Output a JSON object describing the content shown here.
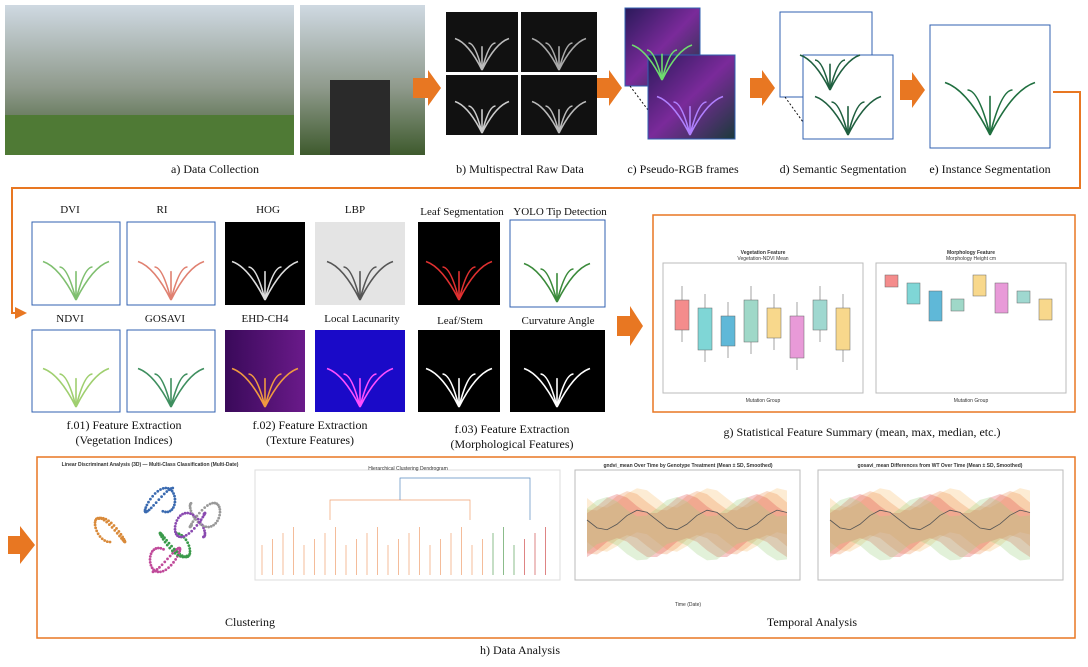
{
  "row1": {
    "a": "a) Data Collection",
    "b": "b) Multispectral Raw Data",
    "c": "c) Pseudo-RGB frames",
    "d": "d) Semantic Segmentation",
    "e": "e) Instance Segmentation"
  },
  "f01": {
    "panels": [
      "DVI",
      "RI",
      "NDVI",
      "GOSAVI"
    ],
    "caption": [
      "f.01) Feature Extraction",
      "(Vegetation Indices)"
    ]
  },
  "f02": {
    "panels": [
      "HOG",
      "LBP",
      "EHD-CH4",
      "Local Lacunarity"
    ],
    "caption": [
      "f.02) Feature Extraction",
      "(Texture Features)"
    ]
  },
  "f03": {
    "panels": [
      "Leaf Segmentation",
      "YOLO Tip Detection",
      "Leaf/Stem",
      "Curvature Angle"
    ],
    "caption": [
      "f.03) Feature Extraction",
      "(Morphological Features)"
    ]
  },
  "g": {
    "caption": "g) Statistical Feature Summary (mean, max, median, etc.)",
    "plots": [
      {
        "title": "Vegetation Feature",
        "subtitle": "Vegetation-NDVI Mean",
        "xlabel": "Mutation Group"
      },
      {
        "title": "Morphology Feature",
        "subtitle": "Morphology Height cm",
        "xlabel": "Mutation Group"
      }
    ]
  },
  "h": {
    "caption": "h) Data Analysis",
    "clustering": "Clustering",
    "temporal": "Temporal Analysis",
    "plots": [
      "Linear Discriminant Analysis (3D) — Multi-Class Classification (Multi-Date)",
      "Hierarchical Clustering Dendrogram",
      "gndvi_mean Over Time by Genotype Treatment (Mean ± SD, Smoothed)",
      "gosavi_mean Differences from WT Over Time (Mean ± SD, Smoothed)"
    ],
    "xlabel": "Time (Date)"
  }
}
